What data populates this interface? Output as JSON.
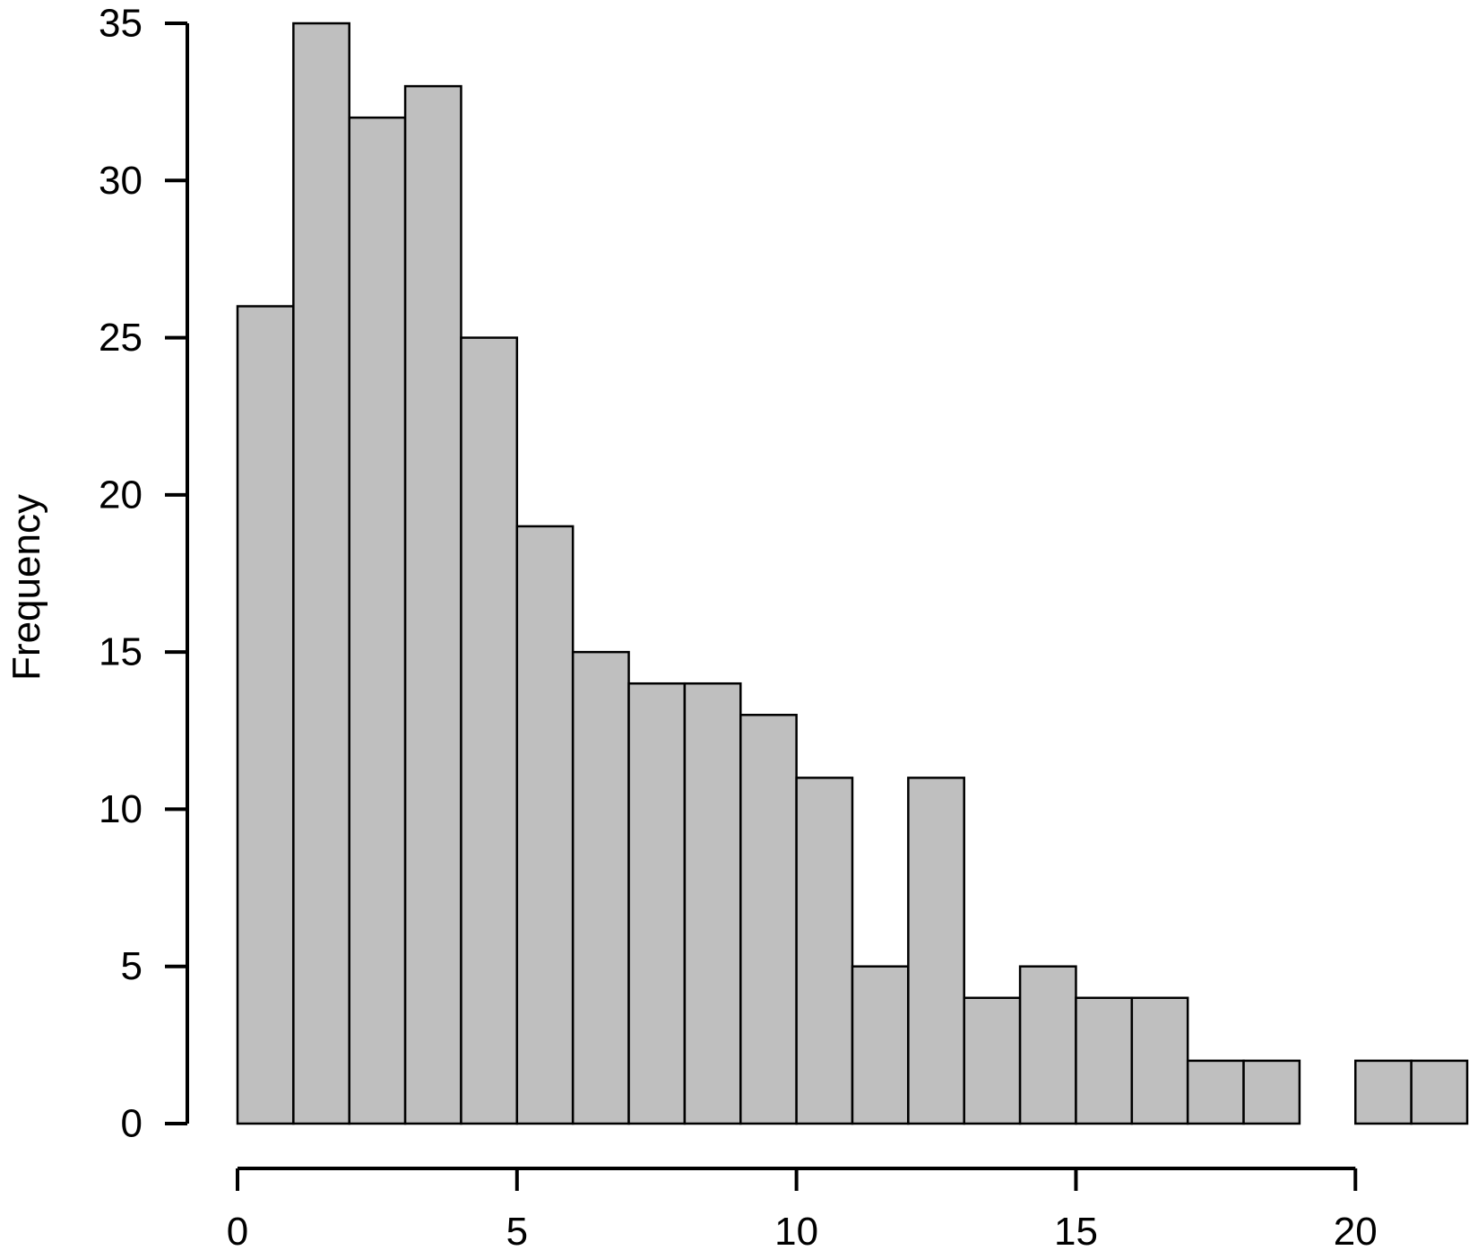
{
  "chart_data": {
    "type": "bar",
    "subtype": "histogram",
    "bin_edges": [
      0,
      1,
      2,
      3,
      4,
      5,
      6,
      7,
      8,
      9,
      10,
      11,
      12,
      13,
      14,
      15,
      16,
      17,
      18,
      19,
      20,
      21,
      22
    ],
    "values": [
      26,
      35,
      32,
      33,
      25,
      19,
      15,
      14,
      14,
      13,
      11,
      5,
      11,
      4,
      5,
      4,
      4,
      2,
      2,
      0,
      2,
      2
    ],
    "ylabel": "Frequency",
    "xlabel": "",
    "xlim": [
      0,
      22
    ],
    "ylim": [
      0,
      35
    ],
    "x_ticks": [
      "0",
      "5",
      "10",
      "15",
      "20"
    ],
    "y_ticks": [
      "0",
      "5",
      "10",
      "15",
      "20",
      "25",
      "30",
      "35"
    ],
    "grid": false,
    "legend": "none",
    "bar_color": "#bfbfbf"
  }
}
